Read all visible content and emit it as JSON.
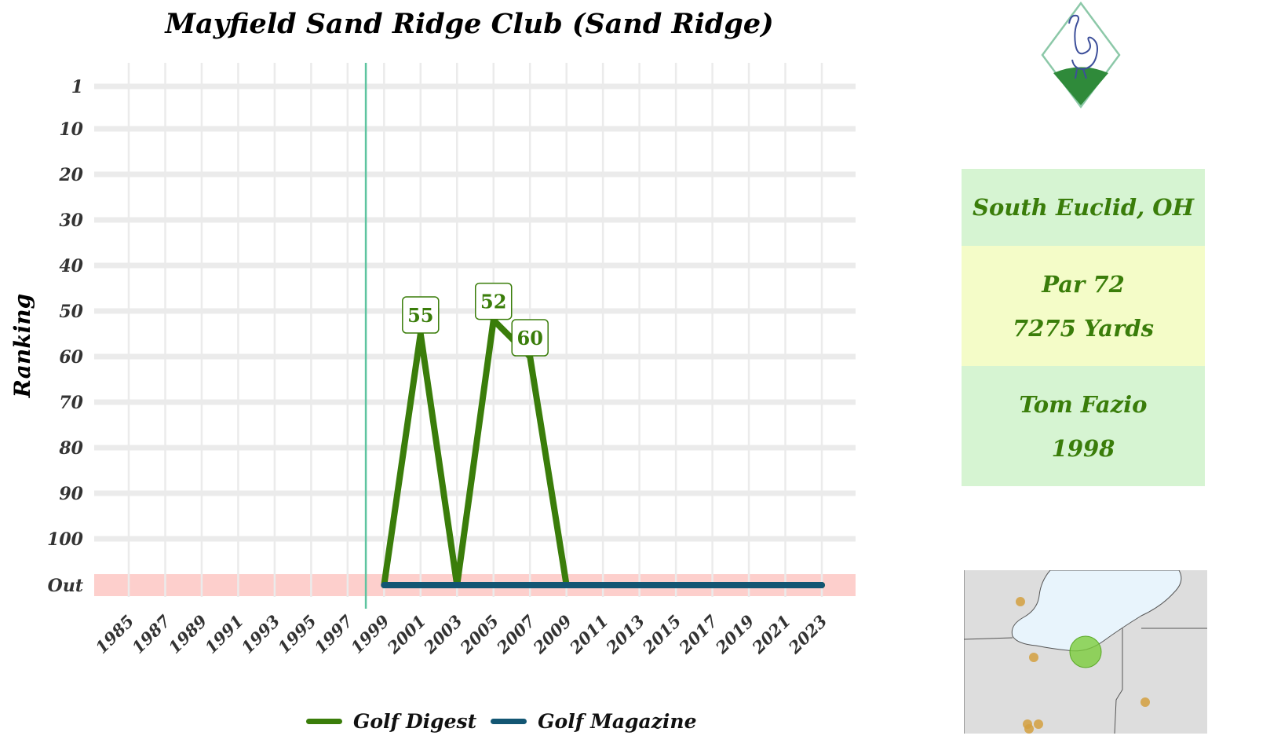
{
  "chart_data": {
    "type": "line",
    "title": "Mayfield Sand Ridge Club (Sand Ridge)",
    "xlabel": "",
    "ylabel": "Ranking",
    "y_tick_labels": [
      "1",
      "10",
      "20",
      "30",
      "40",
      "50",
      "60",
      "70",
      "80",
      "90",
      "100",
      "Out"
    ],
    "y_tick_values": [
      1,
      10,
      20,
      30,
      40,
      50,
      60,
      70,
      80,
      90,
      100,
      110
    ],
    "x_tick_labels": [
      "1985",
      "1987",
      "1989",
      "1991",
      "1993",
      "1995",
      "1997",
      "1999",
      "2001",
      "2003",
      "2005",
      "2007",
      "2009",
      "2011",
      "2013",
      "2015",
      "2017",
      "2019",
      "2021",
      "2023"
    ],
    "xlim": [
      1984,
      2024
    ],
    "ylim": [
      110,
      1
    ],
    "out_band_color": "#fdcfcc",
    "reference_line": {
      "x": 1998,
      "color": "#5ec4a0"
    },
    "grid": true,
    "legend_position": "bottom",
    "series": [
      {
        "name": "Golf Digest",
        "color": "#3a7d0a",
        "x": [
          1999,
          2001,
          2003,
          2005,
          2007,
          2009,
          2011,
          2013,
          2015,
          2017,
          2019,
          2021,
          2023
        ],
        "y": [
          110,
          55,
          110,
          52,
          60,
          110,
          110,
          110,
          110,
          110,
          110,
          110,
          110
        ]
      },
      {
        "name": "Golf Magazine",
        "color": "#135673",
        "x": [
          1999,
          2001,
          2003,
          2005,
          2007,
          2009,
          2011,
          2013,
          2015,
          2017,
          2019,
          2021,
          2023
        ],
        "y": [
          110,
          110,
          110,
          110,
          110,
          110,
          110,
          110,
          110,
          110,
          110,
          110,
          110
        ]
      }
    ],
    "annotations": [
      {
        "x": 2001,
        "y": 55,
        "text": "55"
      },
      {
        "x": 2005,
        "y": 52,
        "text": "52"
      },
      {
        "x": 2007,
        "y": 60,
        "text": "60"
      }
    ]
  },
  "info": {
    "location": "South Euclid, OH",
    "par": "Par 72",
    "yards": "7275 Yards",
    "architect": "Tom Fazio",
    "year": "1998"
  },
  "icons": {
    "logo": "ostrich-diamond-logo-icon",
    "map": "great-lakes-location-map"
  },
  "colors": {
    "green": "#3a7d0a",
    "navy": "#135673",
    "lake": "#e8f4fc",
    "land": "#dddddd",
    "marker": "#7ccd3c",
    "other_course": "#d4a040"
  }
}
